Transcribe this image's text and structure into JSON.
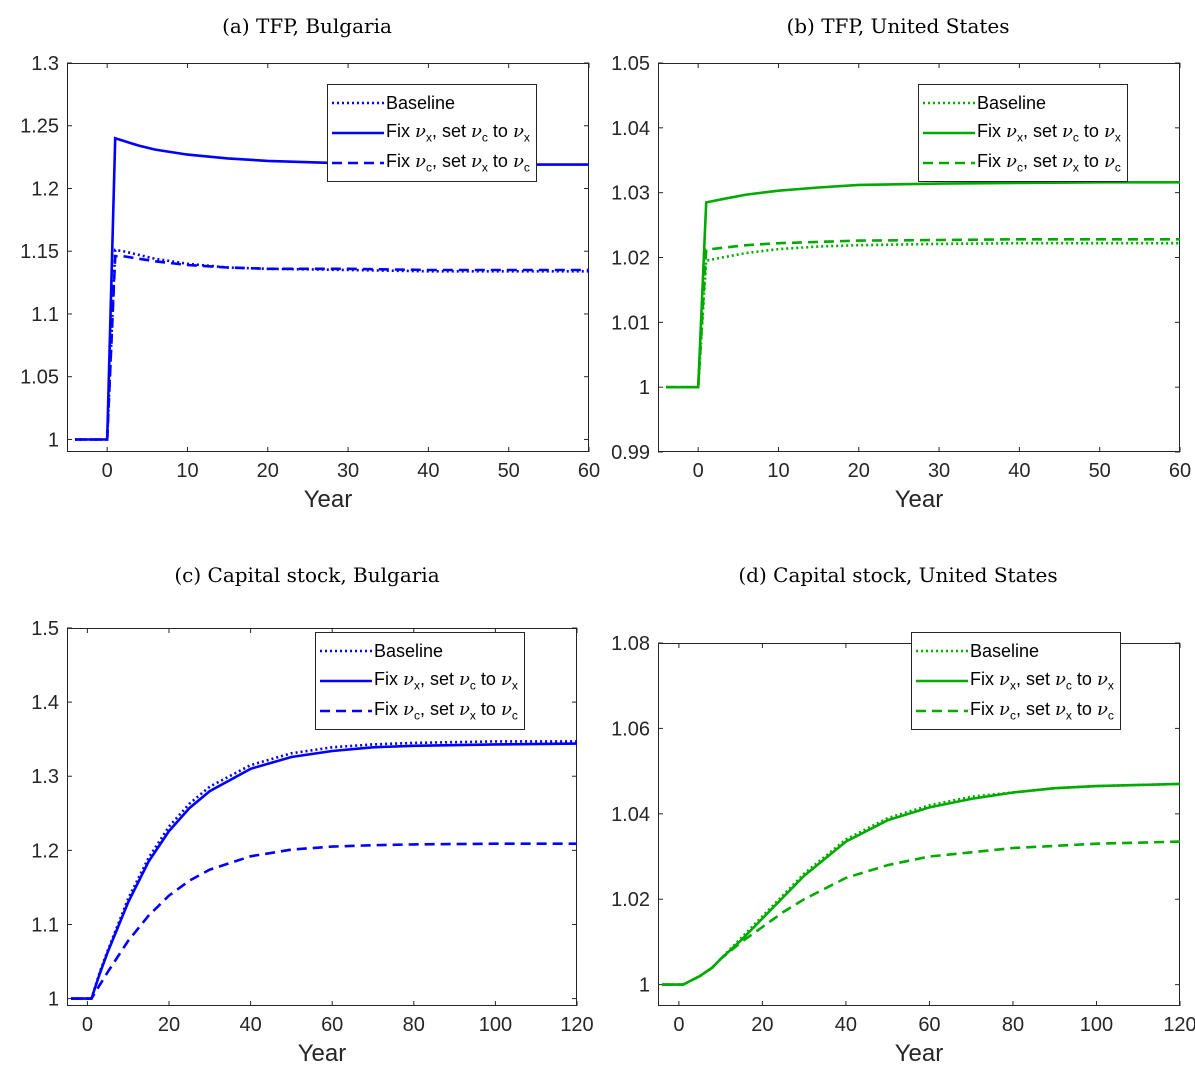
{
  "chart_data": [
    {
      "id": "a",
      "type": "line",
      "title": "(a) TFP, Bulgaria",
      "xlabel": "Year",
      "ylabel": "",
      "xlim": [
        -5,
        60
      ],
      "ylim": [
        0.99,
        1.3
      ],
      "xticks": [
        0,
        10,
        20,
        30,
        40,
        50,
        60
      ],
      "yticks": [
        1,
        1.05,
        1.1,
        1.15,
        1.2,
        1.25,
        1.3
      ],
      "color": "#0000ff",
      "legend_position": "top-right",
      "series": [
        {
          "name": "Baseline",
          "style": "dotted",
          "x": [
            -4,
            0,
            1,
            2,
            4,
            6,
            10,
            15,
            20,
            30,
            40,
            50,
            60
          ],
          "y": [
            1,
            1,
            1.151,
            1.15,
            1.147,
            1.144,
            1.14,
            1.137,
            1.136,
            1.135,
            1.134,
            1.134,
            1.134
          ]
        },
        {
          "name": "Fix ν_x, set ν_c to ν_x",
          "style": "solid",
          "x": [
            -4,
            0,
            1,
            2,
            4,
            6,
            10,
            15,
            20,
            30,
            40,
            50,
            60
          ],
          "y": [
            1,
            1,
            1.24,
            1.238,
            1.234,
            1.231,
            1.227,
            1.224,
            1.222,
            1.22,
            1.219,
            1.219,
            1.219
          ]
        },
        {
          "name": "Fix ν_c, set ν_x to ν_c",
          "style": "dashed",
          "x": [
            -4,
            0,
            1,
            2,
            4,
            6,
            10,
            15,
            20,
            30,
            40,
            50,
            60
          ],
          "y": [
            1,
            1,
            1.146,
            1.146,
            1.144,
            1.142,
            1.139,
            1.137,
            1.136,
            1.136,
            1.135,
            1.135,
            1.135
          ]
        }
      ]
    },
    {
      "id": "b",
      "type": "line",
      "title": "(b) TFP, United States",
      "xlabel": "Year",
      "ylabel": "",
      "xlim": [
        -5,
        60
      ],
      "ylim": [
        0.99,
        1.05
      ],
      "xticks": [
        0,
        10,
        20,
        30,
        40,
        50,
        60
      ],
      "yticks": [
        0.99,
        1,
        1.01,
        1.02,
        1.03,
        1.04,
        1.05
      ],
      "color": "#00aa00",
      "legend_position": "top-right",
      "series": [
        {
          "name": "Baseline",
          "style": "dotted",
          "x": [
            -4,
            0,
            1,
            3,
            6,
            10,
            15,
            20,
            30,
            40,
            50,
            60
          ],
          "y": [
            1,
            1,
            1.0195,
            1.02,
            1.0207,
            1.0213,
            1.0217,
            1.0219,
            1.0221,
            1.0222,
            1.0222,
            1.0222
          ]
        },
        {
          "name": "Fix ν_x, set ν_c to ν_x",
          "style": "solid",
          "x": [
            -4,
            0,
            1,
            3,
            6,
            10,
            15,
            20,
            30,
            40,
            50,
            60
          ],
          "y": [
            1,
            1,
            1.0285,
            1.029,
            1.0297,
            1.0303,
            1.0308,
            1.0312,
            1.0314,
            1.0315,
            1.0316,
            1.0316
          ]
        },
        {
          "name": "Fix ν_c, set ν_x to ν_c",
          "style": "dashed",
          "x": [
            -4,
            0,
            1,
            3,
            6,
            10,
            15,
            20,
            30,
            40,
            50,
            60
          ],
          "y": [
            1,
            1,
            1.0212,
            1.0215,
            1.0219,
            1.0222,
            1.0224,
            1.0226,
            1.0227,
            1.0228,
            1.0228,
            1.0228
          ]
        }
      ]
    },
    {
      "id": "c",
      "type": "line",
      "title": "(c) Capital stock, Bulgaria",
      "xlabel": "Year",
      "ylabel": "",
      "xlim": [
        -5,
        120
      ],
      "ylim": [
        0.99,
        1.5
      ],
      "xticks": [
        0,
        20,
        40,
        60,
        80,
        100,
        120
      ],
      "yticks": [
        1,
        1.1,
        1.2,
        1.3,
        1.4,
        1.5
      ],
      "color": "#0000ff",
      "legend_position": "top-right",
      "series": [
        {
          "name": "Baseline",
          "style": "dotted",
          "x": [
            -4,
            1,
            3,
            5,
            10,
            15,
            20,
            25,
            30,
            40,
            50,
            60,
            70,
            80,
            100,
            120
          ],
          "y": [
            1,
            1,
            1.035,
            1.065,
            1.135,
            1.19,
            1.232,
            1.263,
            1.286,
            1.315,
            1.331,
            1.339,
            1.343,
            1.345,
            1.347,
            1.347
          ]
        },
        {
          "name": "Fix ν_x, set ν_c to ν_x",
          "style": "solid",
          "x": [
            -4,
            1,
            3,
            5,
            10,
            15,
            20,
            25,
            30,
            40,
            50,
            60,
            70,
            80,
            100,
            120
          ],
          "y": [
            1,
            1,
            1.033,
            1.063,
            1.13,
            1.185,
            1.226,
            1.257,
            1.28,
            1.31,
            1.326,
            1.334,
            1.339,
            1.341,
            1.343,
            1.344
          ]
        },
        {
          "name": "Fix ν_c, set ν_x to ν_c",
          "style": "dashed",
          "x": [
            -4,
            1,
            3,
            5,
            10,
            15,
            20,
            25,
            30,
            40,
            50,
            60,
            70,
            80,
            100,
            120
          ],
          "y": [
            1,
            1,
            1.018,
            1.036,
            1.078,
            1.112,
            1.139,
            1.159,
            1.174,
            1.192,
            1.201,
            1.205,
            1.207,
            1.208,
            1.209,
            1.209
          ]
        }
      ]
    },
    {
      "id": "d",
      "type": "line",
      "title": "(d) Capital stock, United States",
      "xlabel": "Year",
      "ylabel": "",
      "xlim": [
        -5,
        120
      ],
      "ylim": [
        0.995,
        1.08
      ],
      "xticks": [
        0,
        20,
        40,
        60,
        80,
        100,
        120
      ],
      "yticks": [
        1,
        1.02,
        1.04,
        1.06,
        1.08
      ],
      "color": "#00aa00",
      "legend_position": "top-right",
      "series": [
        {
          "name": "Baseline",
          "style": "dotted",
          "x": [
            -4,
            1,
            3,
            5,
            8,
            10,
            15,
            20,
            25,
            30,
            40,
            50,
            60,
            70,
            80,
            90,
            100,
            120
          ],
          "y": [
            1,
            1,
            1.001,
            1.002,
            1.004,
            1.006,
            1.011,
            1.016,
            1.021,
            1.026,
            1.034,
            1.039,
            1.042,
            1.044,
            1.045,
            1.046,
            1.0465,
            1.047
          ]
        },
        {
          "name": "Fix ν_x, set ν_c to ν_x",
          "style": "solid",
          "x": [
            -4,
            1,
            3,
            5,
            8,
            10,
            15,
            20,
            25,
            30,
            40,
            50,
            60,
            70,
            80,
            90,
            100,
            120
          ],
          "y": [
            1,
            1,
            1.001,
            1.002,
            1.004,
            1.006,
            1.0105,
            1.0155,
            1.0205,
            1.0255,
            1.0335,
            1.0385,
            1.0415,
            1.0435,
            1.045,
            1.046,
            1.0465,
            1.047
          ]
        },
        {
          "name": "Fix ν_c, set ν_x to ν_c",
          "style": "dashed",
          "x": [
            -4,
            1,
            3,
            5,
            8,
            10,
            15,
            20,
            25,
            30,
            40,
            50,
            60,
            70,
            80,
            90,
            100,
            120
          ],
          "y": [
            1,
            1,
            1.001,
            1.002,
            1.004,
            1.006,
            1.01,
            1.0135,
            1.017,
            1.02,
            1.025,
            1.028,
            1.03,
            1.031,
            1.032,
            1.0325,
            1.033,
            1.0335
          ]
        }
      ]
    }
  ]
}
